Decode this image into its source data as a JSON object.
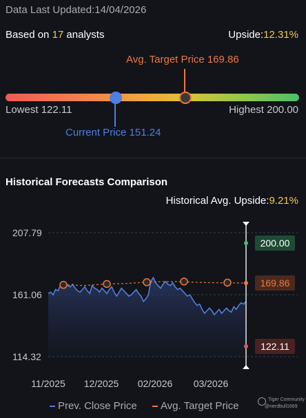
{
  "header": {
    "updated_label": "Data Last Updated:",
    "updated_date": "14/04/2026"
  },
  "summary": {
    "analysts_prefix": "Based on",
    "analysts_count": "17",
    "analysts_suffix": "analysts",
    "upside_label": "Upside:",
    "upside_value": "12.31%"
  },
  "gauge": {
    "avg_target_label": "Avg. Target Price 169.86",
    "lowest_label": "Lowest 122.11",
    "highest_label": "Highest 200.00",
    "current_label": "Current Price 151.24",
    "lowest": 122.11,
    "highest": 200.0,
    "current": 151.24,
    "avg_target": 169.86
  },
  "history": {
    "title": "Historical Forecasts Comparison",
    "upside_label": "Historical Avg. Upside:",
    "upside_value": "9.21%"
  },
  "chart_data": {
    "type": "line",
    "y_ticks": [
      "207.79",
      "161.06",
      "114.32"
    ],
    "ylim": [
      114.32,
      207.79
    ],
    "x_ticks": [
      "11/2025",
      "12/2025",
      "02/2026",
      "03/2026"
    ],
    "series": [
      {
        "name": "Prev. Close Price",
        "color": "#4f7fe0",
        "values": [
          162,
          163,
          161,
          165,
          164,
          168,
          166,
          170,
          168,
          167,
          169,
          166,
          164,
          163,
          165,
          167,
          164,
          162,
          168,
          166,
          165,
          163,
          166,
          164,
          162,
          165,
          167,
          163,
          160,
          163,
          166,
          164,
          162,
          160,
          161,
          163,
          165,
          162,
          160,
          156,
          158,
          161,
          171,
          174,
          170,
          168,
          166,
          169,
          171,
          169,
          168,
          170,
          167,
          165,
          166,
          164,
          162,
          160,
          161,
          158,
          155,
          153,
          154,
          150,
          147,
          149,
          151,
          149,
          146,
          148,
          150,
          147,
          149,
          151,
          149,
          148,
          152,
          150,
          153,
          155,
          154,
          156
        ]
      },
      {
        "name": "Avg. Target Price",
        "color": "#f0773c",
        "values": [
          168.5,
          168.0,
          169.2,
          169.5,
          170.5,
          171.0,
          170.8,
          170.2,
          169.86
        ]
      }
    ],
    "labels": {
      "highest": "200.00",
      "avg": "169.86",
      "lowest": "122.11"
    }
  },
  "legend": {
    "prev_close": "Prev. Close Price",
    "avg_target": "Avg. Target Price"
  },
  "watermark": {
    "brand": "Tiger Community",
    "user": "@nerdbull1669"
  }
}
